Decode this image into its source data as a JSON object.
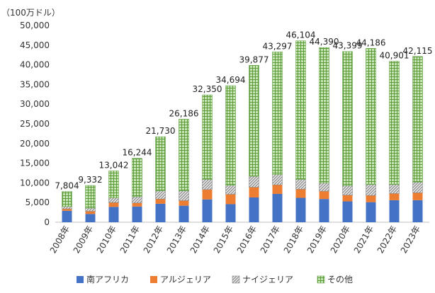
{
  "chart_data": {
    "type": "bar",
    "stacked": true,
    "unit_label": "（100万ドル）",
    "categories": [
      "2008年",
      "2009年",
      "2010年",
      "2011年",
      "2012年",
      "2013年",
      "2014年",
      "2015年",
      "2016年",
      "2017年",
      "2018年",
      "2019年",
      "2020年",
      "2021年",
      "2022年",
      "2023年"
    ],
    "series": [
      {
        "name": "南アフリカ",
        "color": "#4472c4",
        "pattern": "solid",
        "values": [
          2900,
          2100,
          3900,
          4000,
          4700,
          4200,
          5800,
          4600,
          6300,
          7200,
          6200,
          5900,
          5300,
          5100,
          5600,
          5600
        ]
      },
      {
        "name": "アルジェリア",
        "color": "#ed7d31",
        "pattern": "solid",
        "values": [
          500,
          700,
          1100,
          900,
          1200,
          1300,
          2500,
          2500,
          2600,
          2300,
          2200,
          2000,
          1600,
          1700,
          1700,
          1900
        ]
      },
      {
        "name": "ナイジェリア",
        "color": "#a5a5a5",
        "pattern": "diagonal",
        "values": [
          600,
          800,
          1200,
          1600,
          2100,
          2500,
          2600,
          2300,
          2800,
          2600,
          2500,
          2100,
          2400,
          2800,
          2300,
          2700
        ]
      },
      {
        "name": "その他",
        "color": "#70ad47",
        "pattern": "grid",
        "values": [
          3804,
          5732,
          6842,
          9744,
          13730,
          18186,
          21450,
          25294,
          28177,
          31197,
          35204,
          34390,
          34099,
          34586,
          31301,
          31915
        ]
      }
    ],
    "totals": [
      "7,804",
      "9,332",
      "13,042",
      "16,244",
      "21,730",
      "26,186",
      "32,350",
      "34,694",
      "39,877",
      "43,297",
      "46,104",
      "44,390",
      "43,399",
      "44,186",
      "40,901",
      "42,115"
    ],
    "y_ticks": [
      "0",
      "5,000",
      "10,000",
      "15,000",
      "20,000",
      "25,000",
      "30,000",
      "35,000",
      "40,000",
      "45,000",
      "50,000"
    ],
    "ylim": [
      0,
      50000
    ],
    "grid": false,
    "legend_position": "bottom"
  }
}
